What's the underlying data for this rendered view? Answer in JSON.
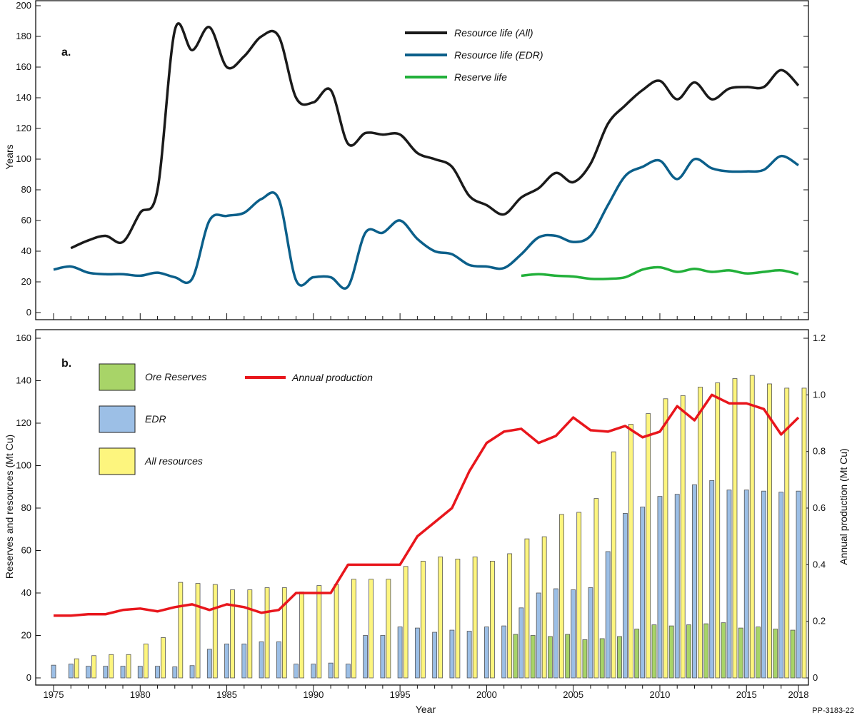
{
  "figure_id": "PP-3183-22",
  "colors": {
    "all": "#1a1a1a",
    "edr": "#0b5f8a",
    "reserve": "#22b03a",
    "ore_bar": "#a8d468",
    "edr_bar": "#9cbfe6",
    "all_bar": "#fdf57e",
    "production": "#e8161c"
  },
  "chart_data": [
    {
      "panel_label": "a.",
      "type": "line",
      "ylabel": "Years",
      "ylim": [
        0,
        200
      ],
      "yticks": [
        0,
        20,
        40,
        60,
        80,
        100,
        120,
        140,
        160,
        180,
        200
      ],
      "xlim": [
        1974,
        2018.5
      ],
      "legend_placement": "top-center",
      "grid": false,
      "smoothed": true,
      "series": [
        {
          "name": "Resource life (All)",
          "color": "#1a1a1a",
          "x": [
            1976,
            1977,
            1978,
            1979,
            1980,
            1981,
            1982,
            1983,
            1984,
            1985,
            1986,
            1987,
            1988,
            1989,
            1990,
            1991,
            1992,
            1993,
            1994,
            1995,
            1996,
            1997,
            1998,
            1999,
            2000,
            2001,
            2002,
            2003,
            2004,
            2005,
            2006,
            2007,
            2008,
            2009,
            2010,
            2011,
            2012,
            2013,
            2014,
            2015,
            2016,
            2017,
            2018
          ],
          "values": [
            42,
            47,
            50,
            46,
            65,
            80,
            184,
            171,
            186,
            160,
            167,
            180,
            180,
            140,
            137,
            145,
            110,
            117,
            116,
            116,
            104,
            100,
            95,
            76,
            70,
            64,
            75,
            81,
            91,
            85,
            97,
            123,
            135,
            145,
            151,
            139,
            150,
            139,
            146,
            147,
            147,
            158,
            148
          ]
        },
        {
          "name": "Resource life (EDR)",
          "color": "#0b5f8a",
          "x": [
            1975,
            1976,
            1977,
            1978,
            1979,
            1980,
            1981,
            1982,
            1983,
            1984,
            1985,
            1986,
            1987,
            1988,
            1989,
            1990,
            1991,
            1992,
            1993,
            1994,
            1995,
            1996,
            1997,
            1998,
            1999,
            2000,
            2001,
            2002,
            2003,
            2004,
            2005,
            2006,
            2007,
            2008,
            2009,
            2010,
            2011,
            2012,
            2013,
            2014,
            2015,
            2016,
            2017,
            2018
          ],
          "values": [
            28,
            30,
            26,
            25,
            25,
            24,
            26,
            23,
            22,
            60,
            63,
            65,
            74,
            74,
            21,
            23,
            23,
            17,
            52,
            52,
            60,
            48,
            40,
            38,
            31,
            30,
            29,
            38,
            49,
            50,
            46,
            50,
            70,
            89,
            95,
            99,
            87,
            100,
            94,
            92,
            92,
            93,
            102,
            96
          ]
        },
        {
          "name": "Reserve life",
          "color": "#22b03a",
          "x": [
            2002,
            2003,
            2004,
            2005,
            2006,
            2007,
            2008,
            2009,
            2010,
            2011,
            2012,
            2013,
            2014,
            2015,
            2016,
            2017,
            2018
          ],
          "values": [
            24,
            25,
            24,
            23.5,
            22,
            22,
            23,
            28,
            29.5,
            26.5,
            28.5,
            26.5,
            27.5,
            25.5,
            26.5,
            27.5,
            25
          ]
        }
      ]
    },
    {
      "panel_label": "b.",
      "type": "bar",
      "xlabel": "Year",
      "ylabel": "Reserves and resources (Mt Cu)",
      "ylabel_right": "Annual production (Mt Cu)",
      "ylim": [
        0,
        160
      ],
      "yticks": [
        0,
        20,
        40,
        60,
        80,
        100,
        120,
        140,
        160
      ],
      "ylim_right": [
        0,
        1.2
      ],
      "yticks_right": [
        "0",
        "0.2",
        "0.4",
        "0.6",
        "0.8",
        "1.0",
        "1.2"
      ],
      "xticks": [
        "1975",
        "1980",
        "1985",
        "1990",
        "1995",
        "2000",
        "2005",
        "2010",
        "2015",
        "2018"
      ],
      "legend_placement": "top-left",
      "grid": false,
      "categories": [
        1975,
        1976,
        1977,
        1978,
        1979,
        1980,
        1981,
        1982,
        1983,
        1984,
        1985,
        1986,
        1987,
        1988,
        1989,
        1990,
        1991,
        1992,
        1993,
        1994,
        1995,
        1996,
        1997,
        1998,
        1999,
        2000,
        2001,
        2002,
        2003,
        2004,
        2005,
        2006,
        2007,
        2008,
        2009,
        2010,
        2011,
        2012,
        2013,
        2014,
        2015,
        2016,
        2017,
        2018
      ],
      "series": [
        {
          "name": "Ore Reserves",
          "color": "#a8d468",
          "values": [
            null,
            null,
            null,
            null,
            null,
            null,
            null,
            null,
            null,
            null,
            null,
            null,
            null,
            null,
            null,
            null,
            null,
            null,
            null,
            null,
            null,
            null,
            null,
            null,
            null,
            null,
            null,
            20.5,
            20,
            19.5,
            20.5,
            18,
            18.5,
            19.5,
            23,
            25,
            24.5,
            25,
            25.5,
            26,
            23.5,
            24,
            23,
            22.5
          ]
        },
        {
          "name": "EDR",
          "color": "#9cbfe6",
          "values": [
            6,
            6.5,
            5.5,
            5.5,
            5.5,
            5.5,
            5.5,
            5.2,
            5.8,
            13.5,
            16,
            16,
            17,
            17,
            6.5,
            6.5,
            7,
            6.5,
            20,
            20,
            24,
            23.5,
            21.5,
            22.5,
            22,
            24,
            24.5,
            33,
            40,
            42,
            41.5,
            42.5,
            59.5,
            77.5,
            80.5,
            85.5,
            86.5,
            91,
            93,
            88.5,
            88.5,
            88,
            87.5,
            88
          ]
        },
        {
          "name": "All resources",
          "color": "#fdf57e",
          "values": [
            null,
            9,
            10.5,
            11,
            11,
            16,
            19,
            45,
            44.5,
            44,
            41.5,
            41.5,
            42.5,
            42.5,
            40.5,
            43.5,
            44,
            46.5,
            46.5,
            46.5,
            52.5,
            55,
            57,
            56,
            57,
            55,
            58.5,
            65.5,
            66.5,
            77,
            78,
            84.5,
            106.5,
            119.5,
            124.5,
            131.5,
            133,
            137,
            139,
            141,
            142.5,
            138.5,
            136.5,
            136.5
          ]
        },
        {
          "name": "Annual production",
          "type": "line",
          "axis": "right",
          "color": "#e8161c",
          "values": [
            0.22,
            0.22,
            0.225,
            0.225,
            0.24,
            0.245,
            0.235,
            0.25,
            0.26,
            0.24,
            0.26,
            0.25,
            0.23,
            0.24,
            0.3,
            0.3,
            0.3,
            0.4,
            0.4,
            0.4,
            0.4,
            0.5,
            0.55,
            0.6,
            0.73,
            0.83,
            0.87,
            0.88,
            0.83,
            0.855,
            0.92,
            0.875,
            0.87,
            0.89,
            0.85,
            0.87,
            0.96,
            0.91,
            1.0,
            0.97,
            0.97,
            0.95,
            0.86,
            0.92
          ]
        }
      ]
    }
  ]
}
